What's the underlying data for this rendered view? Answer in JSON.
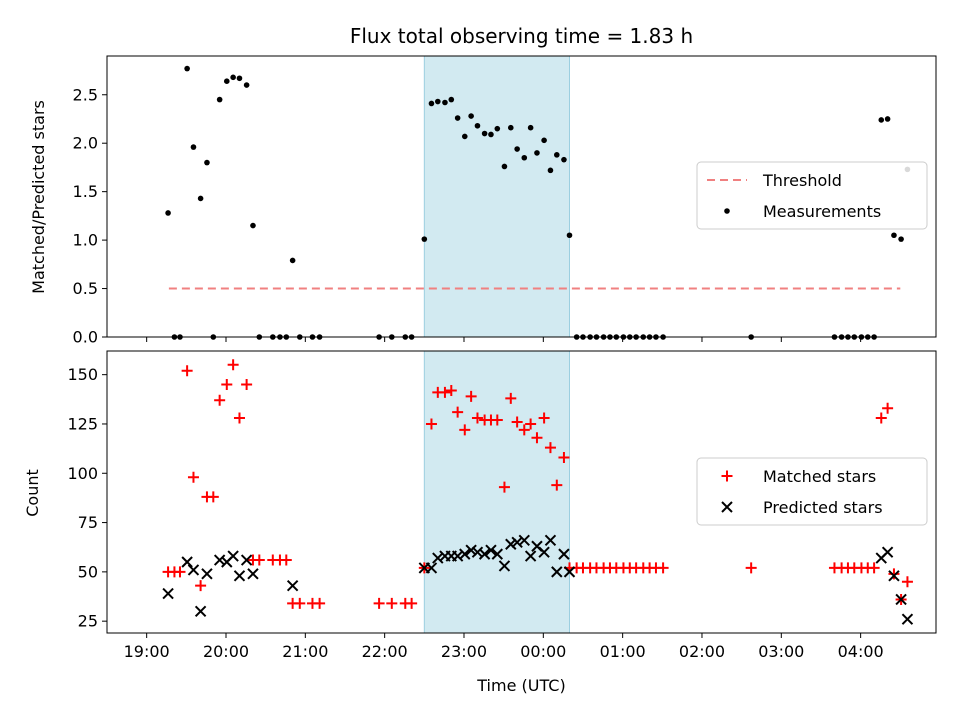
{
  "figure": {
    "title": "Flux total observing time = 1.83 h",
    "xlabel": "Time (UTC)",
    "x_ticks": [
      "19:00",
      "20:00",
      "21:00",
      "22:00",
      "23:00",
      "00:00",
      "01:00",
      "02:00",
      "03:00",
      "04:00"
    ],
    "x_unit": "hours since 19:00 UTC"
  },
  "chart_data": [
    {
      "type": "scatter",
      "ylabel": "Matched/Predicted stars",
      "xlim": [
        -0.5,
        9.95
      ],
      "ylim": [
        0,
        2.9
      ],
      "y_ticks": [
        "0.0",
        "0.5",
        "1.0",
        "1.5",
        "2.0",
        "2.5"
      ],
      "y_tick_values": [
        0,
        0.5,
        1.0,
        1.5,
        2.0,
        2.5
      ],
      "shaded_region": {
        "x": [
          3.5,
          5.33
        ],
        "color": "#add8e6"
      },
      "legend_position": "center-right",
      "series": [
        {
          "name": "Threshold",
          "style": "dashed-line",
          "color": "#f08080",
          "points": [
            [
              0.28,
              0.5
            ],
            [
              9.5,
              0.5
            ]
          ]
        },
        {
          "name": "Measurements",
          "style": "dot",
          "color": "#000000",
          "points": [
            [
              0.27,
              1.28
            ],
            [
              0.35,
              0
            ],
            [
              0.42,
              0
            ],
            [
              0.51,
              2.77
            ],
            [
              0.59,
              1.96
            ],
            [
              0.68,
              1.43
            ],
            [
              0.76,
              1.8
            ],
            [
              0.84,
              0
            ],
            [
              0.92,
              2.45
            ],
            [
              1.01,
              2.64
            ],
            [
              1.09,
              2.68
            ],
            [
              1.17,
              2.67
            ],
            [
              1.26,
              2.6
            ],
            [
              1.34,
              1.15
            ],
            [
              1.42,
              0
            ],
            [
              1.59,
              0
            ],
            [
              1.68,
              0
            ],
            [
              1.76,
              0
            ],
            [
              1.84,
              0.79
            ],
            [
              1.93,
              0
            ],
            [
              2.09,
              0
            ],
            [
              2.18,
              0
            ],
            [
              2.93,
              0
            ],
            [
              3.09,
              0
            ],
            [
              3.26,
              0
            ],
            [
              3.34,
              0
            ],
            [
              3.5,
              1.01
            ],
            [
              3.59,
              2.41
            ],
            [
              3.67,
              2.43
            ],
            [
              3.76,
              2.42
            ],
            [
              3.84,
              2.45
            ],
            [
              3.92,
              2.26
            ],
            [
              4.01,
              2.07
            ],
            [
              4.09,
              2.28
            ],
            [
              4.17,
              2.18
            ],
            [
              4.26,
              2.1
            ],
            [
              4.34,
              2.09
            ],
            [
              4.42,
              2.15
            ],
            [
              4.51,
              1.76
            ],
            [
              4.59,
              2.16
            ],
            [
              4.67,
              1.94
            ],
            [
              4.76,
              1.85
            ],
            [
              4.84,
              2.16
            ],
            [
              4.92,
              1.9
            ],
            [
              5.01,
              2.03
            ],
            [
              5.09,
              1.72
            ],
            [
              5.17,
              1.88
            ],
            [
              5.26,
              1.83
            ],
            [
              5.33,
              1.05
            ],
            [
              5.42,
              0
            ],
            [
              5.5,
              0
            ],
            [
              5.59,
              0
            ],
            [
              5.67,
              0
            ],
            [
              5.76,
              0
            ],
            [
              5.84,
              0
            ],
            [
              5.92,
              0
            ],
            [
              6.01,
              0
            ],
            [
              6.09,
              0
            ],
            [
              6.17,
              0
            ],
            [
              6.26,
              0
            ],
            [
              6.34,
              0
            ],
            [
              6.42,
              0
            ],
            [
              6.51,
              0
            ],
            [
              7.62,
              0
            ],
            [
              8.67,
              0
            ],
            [
              8.76,
              0
            ],
            [
              8.84,
              0
            ],
            [
              8.92,
              0
            ],
            [
              9.01,
              0
            ],
            [
              9.09,
              0
            ],
            [
              9.17,
              0
            ],
            [
              9.26,
              2.24
            ],
            [
              9.34,
              2.25
            ],
            [
              9.42,
              1.05
            ],
            [
              9.51,
              1.01
            ],
            [
              9.59,
              1.73
            ]
          ]
        }
      ]
    },
    {
      "type": "scatter",
      "ylabel": "Count",
      "xlim": [
        -0.5,
        9.95
      ],
      "ylim": [
        19,
        162
      ],
      "y_ticks": [
        "25",
        "50",
        "75",
        "100",
        "125",
        "150"
      ],
      "y_tick_values": [
        25,
        50,
        75,
        100,
        125,
        150
      ],
      "shaded_region": {
        "x": [
          3.5,
          5.33
        ],
        "color": "#add8e6"
      },
      "legend_position": "center-right",
      "series": [
        {
          "name": "Matched stars",
          "style": "plus",
          "color": "#ff0000",
          "points": [
            [
              0.27,
              50
            ],
            [
              0.35,
              50
            ],
            [
              0.42,
              50
            ],
            [
              0.51,
              152
            ],
            [
              0.59,
              98
            ],
            [
              0.68,
              43
            ],
            [
              0.76,
              88
            ],
            [
              0.84,
              88
            ],
            [
              0.92,
              137
            ],
            [
              1.01,
              145
            ],
            [
              1.09,
              155
            ],
            [
              1.17,
              128
            ],
            [
              1.26,
              145
            ],
            [
              1.34,
              56
            ],
            [
              1.42,
              56
            ],
            [
              1.59,
              56
            ],
            [
              1.68,
              56
            ],
            [
              1.76,
              56
            ],
            [
              1.84,
              34
            ],
            [
              1.93,
              34
            ],
            [
              2.09,
              34
            ],
            [
              2.18,
              34
            ],
            [
              2.93,
              34
            ],
            [
              3.09,
              34
            ],
            [
              3.26,
              34
            ],
            [
              3.34,
              34
            ],
            [
              3.5,
              52
            ],
            [
              3.59,
              125
            ],
            [
              3.67,
              141
            ],
            [
              3.76,
              141
            ],
            [
              3.84,
              142
            ],
            [
              3.92,
              131
            ],
            [
              4.01,
              122
            ],
            [
              4.09,
              139
            ],
            [
              4.17,
              128
            ],
            [
              4.26,
              127
            ],
            [
              4.34,
              127
            ],
            [
              4.42,
              127
            ],
            [
              4.51,
              93
            ],
            [
              4.59,
              138
            ],
            [
              4.67,
              126
            ],
            [
              4.76,
              122
            ],
            [
              4.84,
              125
            ],
            [
              4.92,
              118
            ],
            [
              5.01,
              128
            ],
            [
              5.09,
              113
            ],
            [
              5.17,
              94
            ],
            [
              5.26,
              108
            ],
            [
              5.33,
              52
            ],
            [
              5.42,
              52
            ],
            [
              5.5,
              52
            ],
            [
              5.59,
              52
            ],
            [
              5.67,
              52
            ],
            [
              5.76,
              52
            ],
            [
              5.84,
              52
            ],
            [
              5.92,
              52
            ],
            [
              6.01,
              52
            ],
            [
              6.09,
              52
            ],
            [
              6.17,
              52
            ],
            [
              6.26,
              52
            ],
            [
              6.34,
              52
            ],
            [
              6.42,
              52
            ],
            [
              6.51,
              52
            ],
            [
              7.62,
              52
            ],
            [
              8.67,
              52
            ],
            [
              8.76,
              52
            ],
            [
              8.84,
              52
            ],
            [
              8.92,
              52
            ],
            [
              9.01,
              52
            ],
            [
              9.09,
              52
            ],
            [
              9.17,
              52
            ],
            [
              9.26,
              128
            ],
            [
              9.34,
              133
            ],
            [
              9.42,
              49
            ],
            [
              9.51,
              36
            ],
            [
              9.59,
              45
            ]
          ]
        },
        {
          "name": "Predicted stars",
          "style": "x",
          "color": "#000000",
          "points": [
            [
              0.27,
              39
            ],
            [
              0.51,
              55
            ],
            [
              0.59,
              51
            ],
            [
              0.68,
              30
            ],
            [
              0.76,
              49
            ],
            [
              0.92,
              56
            ],
            [
              1.01,
              55
            ],
            [
              1.09,
              58
            ],
            [
              1.17,
              48
            ],
            [
              1.26,
              56
            ],
            [
              1.34,
              49
            ],
            [
              1.84,
              43
            ],
            [
              3.5,
              52
            ],
            [
              3.59,
              52
            ],
            [
              3.67,
              57
            ],
            [
              3.76,
              58
            ],
            [
              3.84,
              58
            ],
            [
              3.92,
              58
            ],
            [
              4.01,
              59
            ],
            [
              4.09,
              61
            ],
            [
              4.17,
              60
            ],
            [
              4.26,
              59
            ],
            [
              4.34,
              61
            ],
            [
              4.42,
              59
            ],
            [
              4.51,
              53
            ],
            [
              4.59,
              64
            ],
            [
              4.67,
              65
            ],
            [
              4.76,
              66
            ],
            [
              4.84,
              58
            ],
            [
              4.92,
              63
            ],
            [
              5.01,
              60
            ],
            [
              5.09,
              66
            ],
            [
              5.17,
              50
            ],
            [
              5.26,
              59
            ],
            [
              5.33,
              50
            ],
            [
              9.26,
              57
            ],
            [
              9.34,
              60
            ],
            [
              9.42,
              48
            ],
            [
              9.51,
              36
            ],
            [
              9.59,
              26
            ]
          ]
        }
      ]
    }
  ]
}
